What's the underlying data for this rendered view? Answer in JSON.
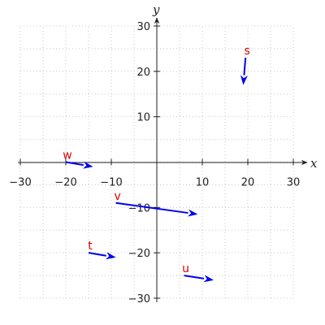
{
  "chart_data": {
    "type": "vector-field",
    "title": "",
    "xlabel": "x",
    "ylabel": "y",
    "xlim": [
      -30,
      30
    ],
    "ylim": [
      -30,
      30
    ],
    "xticks": [
      -30,
      -20,
      -10,
      10,
      20,
      30
    ],
    "yticks": [
      -30,
      -20,
      -10,
      10,
      20,
      30
    ],
    "grid": true,
    "vector_color": "#0000ee",
    "label_color": "#dd0000",
    "vectors": [
      {
        "name": "s",
        "x0": 19.5,
        "y0": 23,
        "x1": 19,
        "y1": 17
      },
      {
        "name": "w",
        "x0": -20,
        "y0": 0,
        "x1": -14,
        "y1": -1
      },
      {
        "name": "v",
        "x0": -9,
        "y0": -9,
        "x1": 9,
        "y1": -11.5
      },
      {
        "name": "t",
        "x0": -15,
        "y0": -20,
        "x1": -9,
        "y1": -21
      },
      {
        "name": "u",
        "x0": 6,
        "y0": -25,
        "x1": 12.5,
        "y1": -26
      }
    ]
  }
}
